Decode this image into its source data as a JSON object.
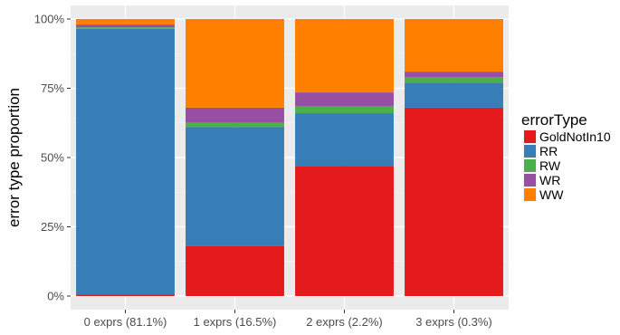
{
  "chart_data": {
    "type": "bar",
    "stacked": true,
    "ylabel": "error type proportion",
    "y_tick_labels": [
      "0%",
      "25%",
      "50%",
      "75%",
      "100%"
    ],
    "y_ticks": [
      0,
      25,
      50,
      75,
      100
    ],
    "ylim": [
      0,
      100
    ],
    "categories": [
      "0 exprs (81.1%)",
      "1 exprs (16.5%)",
      "2 exprs (2.2%)",
      "3 exprs (0.3%)"
    ],
    "legend": {
      "title": "errorType",
      "placement": "right"
    },
    "grid": true,
    "series": [
      {
        "name": "GoldNotIn10",
        "color": "#E41A1C",
        "values": [
          0.5,
          18,
          47,
          68
        ]
      },
      {
        "name": "RR",
        "color": "#377EB8",
        "values": [
          96,
          43,
          19,
          9
        ]
      },
      {
        "name": "RW",
        "color": "#4DAF4A",
        "values": [
          0.5,
          1.5,
          2.5,
          2
        ]
      },
      {
        "name": "WR",
        "color": "#984EA3",
        "values": [
          1,
          5.5,
          5,
          2
        ]
      },
      {
        "name": "WW",
        "color": "#FF7F00",
        "values": [
          2,
          32,
          26.5,
          19
        ]
      }
    ]
  }
}
